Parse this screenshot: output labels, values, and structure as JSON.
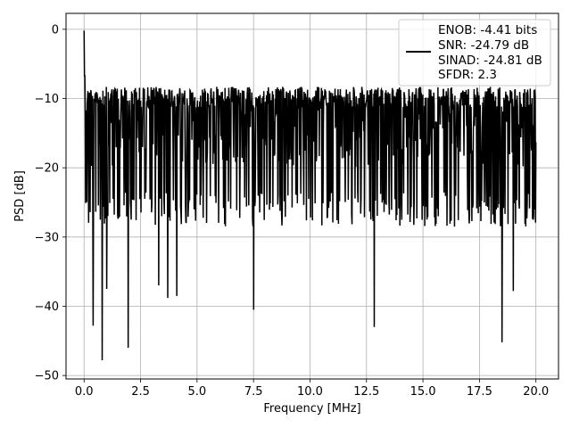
{
  "chart_data": {
    "type": "line",
    "xlabel": "Frequency [MHz]",
    "ylabel": "PSD [dB]",
    "xlim": [
      -0.8,
      21.0
    ],
    "ylim": [
      -50.5,
      2.3
    ],
    "x_ticks": [
      0.0,
      2.5,
      5.0,
      7.5,
      10.0,
      12.5,
      15.0,
      17.5,
      20.0
    ],
    "x_tick_labels": [
      "0.0",
      "2.5",
      "5.0",
      "7.5",
      "10.0",
      "12.5",
      "15.0",
      "17.5",
      "20.0"
    ],
    "y_ticks": [
      0,
      -10,
      -20,
      -30,
      -40,
      -50
    ],
    "y_tick_labels": [
      "0",
      "−10",
      "−20",
      "−30",
      "−40",
      "−50"
    ],
    "grid": true,
    "legend_position": "top-right",
    "line_color": "#000000",
    "series": [
      {
        "x_range": [
          0.0,
          20.0
        ],
        "points": 1200,
        "peak": {
          "x": 0.0,
          "y": -0.2
        },
        "upper_envelope": -8.3,
        "lower_envelope_typical": -27,
        "mean": -15,
        "deep_dips": [
          {
            "x": 0.4,
            "y": -42.8
          },
          {
            "x": 0.8,
            "y": -47.8
          },
          {
            "x": 1.0,
            "y": -37.5
          },
          {
            "x": 1.95,
            "y": -46.0
          },
          {
            "x": 3.3,
            "y": -37.0
          },
          {
            "x": 3.7,
            "y": -38.8
          },
          {
            "x": 4.1,
            "y": -38.5
          },
          {
            "x": 7.5,
            "y": -40.5
          },
          {
            "x": 12.85,
            "y": -43.0
          },
          {
            "x": 18.5,
            "y": -45.2
          },
          {
            "x": 19.0,
            "y": -37.8
          }
        ]
      }
    ],
    "legend": {
      "lines": [
        "ENOB: -4.41 bits",
        "SNR: -24.79 dB",
        "SINAD: -24.81 dB",
        "SFDR: 2.3"
      ]
    }
  }
}
